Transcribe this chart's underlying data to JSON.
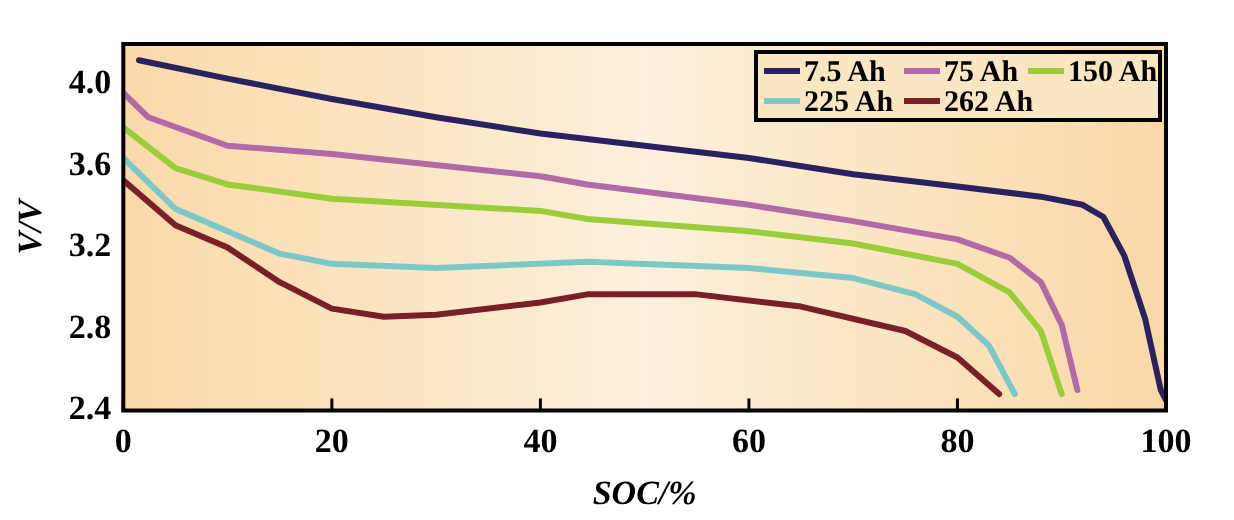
{
  "chart_data": {
    "type": "line",
    "xlabel": "SOC/%",
    "ylabel": "V/V",
    "xlim": [
      0,
      100
    ],
    "xticks": [
      0,
      20,
      40,
      60,
      80,
      100
    ],
    "ylim": [
      2.4,
      4.2
    ],
    "yticks": [
      2.4,
      2.8,
      3.2,
      3.6,
      {
        "value": 4,
        "label": "4.0"
      }
    ],
    "grid": false,
    "legend": "top right",
    "marker": "none",
    "line_style": "solid",
    "series": [
      {
        "name": "7.5 Ah",
        "color": "#2a2260",
        "x": [
          1.5,
          10,
          20,
          30,
          40,
          50,
          60,
          70,
          80,
          88,
          92,
          94,
          96,
          98,
          99.5,
          100
        ],
        "values": [
          4.12,
          4.03,
          3.93,
          3.84,
          3.76,
          3.7,
          3.64,
          3.56,
          3.5,
          3.45,
          3.41,
          3.35,
          3.16,
          2.85,
          2.5,
          2.45
        ]
      },
      {
        "name": "75 Ah",
        "color": "#b06aa8",
        "x": [
          0,
          2.4,
          10,
          20,
          40,
          44.5,
          60,
          70,
          80,
          85,
          88,
          90,
          91.5
        ],
        "values": [
          3.96,
          3.84,
          3.7,
          3.66,
          3.55,
          3.51,
          3.41,
          3.33,
          3.24,
          3.15,
          3.03,
          2.82,
          2.5
        ]
      },
      {
        "name": "150 Ah",
        "color": "#9acd3a",
        "x": [
          0,
          5,
          10,
          20,
          40,
          44.5,
          60,
          70,
          80,
          85,
          88,
          90
        ],
        "values": [
          3.79,
          3.59,
          3.51,
          3.44,
          3.38,
          3.34,
          3.28,
          3.22,
          3.12,
          2.98,
          2.79,
          2.48
        ]
      },
      {
        "name": "225 Ah",
        "color": "#7cc8c8",
        "x": [
          0,
          5,
          10,
          15,
          20,
          30,
          44.5,
          60,
          70,
          76,
          80,
          83,
          85.5
        ],
        "values": [
          3.64,
          3.39,
          3.28,
          3.17,
          3.12,
          3.1,
          3.13,
          3.1,
          3.05,
          2.97,
          2.86,
          2.72,
          2.48
        ]
      },
      {
        "name": "262 Ah",
        "color": "#7a1f28",
        "x": [
          0,
          5,
          10,
          15,
          20,
          25,
          30,
          40,
          44.5,
          55,
          65,
          75,
          80,
          84
        ],
        "values": [
          3.53,
          3.31,
          3.2,
          3.03,
          2.9,
          2.86,
          2.87,
          2.93,
          2.97,
          2.97,
          2.91,
          2.79,
          2.66,
          2.48
        ]
      }
    ]
  }
}
